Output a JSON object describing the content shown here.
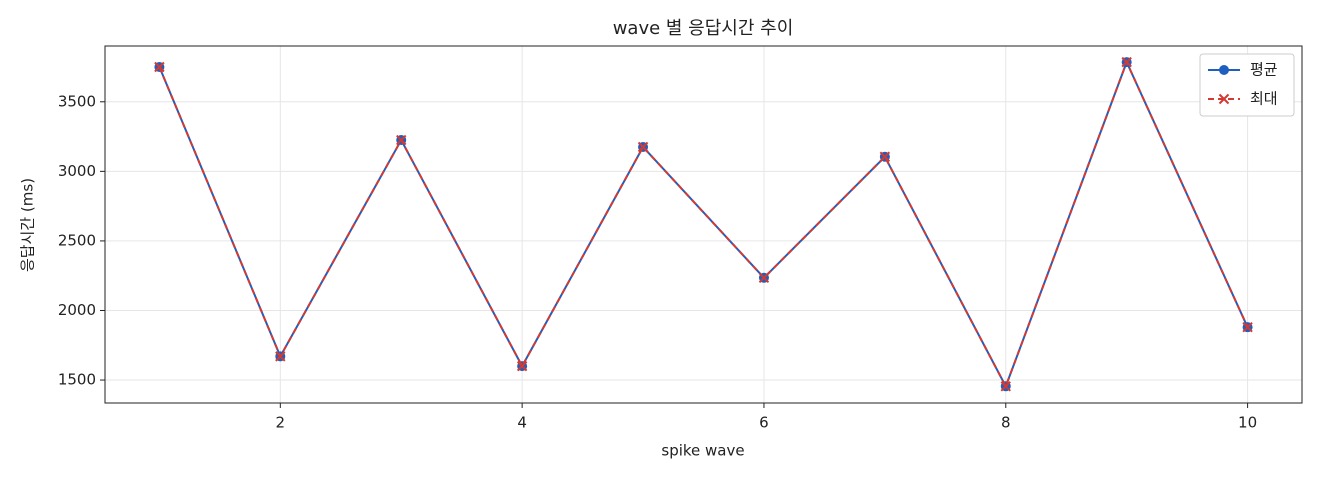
{
  "chart_data": {
    "type": "line",
    "title": "wave 별 응답시간 추이",
    "xlabel": "spike wave",
    "ylabel": "응답시간 (ms)",
    "x": [
      1,
      2,
      3,
      4,
      5,
      6,
      7,
      8,
      9,
      10
    ],
    "series": [
      {
        "name": "평균",
        "color": "#1f5fbf",
        "marker": "circle",
        "dash": false,
        "values": [
          3750,
          1670,
          3225,
          1600,
          3175,
          2235,
          3105,
          1455,
          3785,
          1880
        ]
      },
      {
        "name": "최대",
        "color": "#d33a32",
        "marker": "x",
        "dash": true,
        "values": [
          3750,
          1670,
          3225,
          1600,
          3175,
          2235,
          3105,
          1455,
          3785,
          1880
        ]
      }
    ],
    "xlim": [
      0.55,
      10.45
    ],
    "xticks": [
      2,
      4,
      6,
      8,
      10
    ],
    "ylim": [
      1335,
      3901
    ],
    "yticks": [
      1500,
      2000,
      2500,
      3000,
      3500
    ],
    "grid": true,
    "legend": "upper right"
  }
}
